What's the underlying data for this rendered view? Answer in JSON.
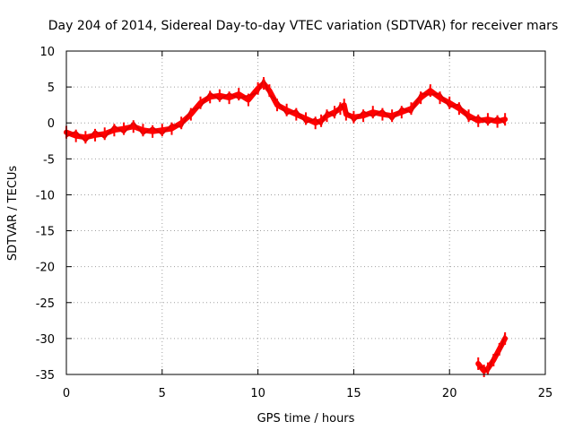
{
  "chart_data": {
    "type": "line",
    "title": "Day 204 of 2014, Sidereal Day-to-day VTEC variation (SDTVAR) for receiver mars",
    "xlabel": "GPS time / hours",
    "ylabel": "SDTVAR / TECUs",
    "xlim": [
      0,
      25
    ],
    "ylim": [
      -35,
      10
    ],
    "xticks": [
      0,
      5,
      10,
      15,
      20,
      25
    ],
    "yticks": [
      10,
      5,
      0,
      -5,
      -10,
      -15,
      -20,
      -25,
      -30,
      -35
    ],
    "grid": true,
    "series": [
      {
        "name": "SDTVAR",
        "color": "#ff0000",
        "segments": [
          [
            [
              0.0,
              -1.3
            ],
            [
              0.5,
              -1.8
            ],
            [
              1.0,
              -2.0
            ],
            [
              1.5,
              -1.7
            ],
            [
              2.0,
              -1.5
            ],
            [
              2.5,
              -1.0
            ],
            [
              3.0,
              -0.8
            ],
            [
              3.5,
              -0.5
            ],
            [
              4.0,
              -1.0
            ],
            [
              4.5,
              -1.2
            ],
            [
              5.0,
              -1.0
            ],
            [
              5.5,
              -0.8
            ],
            [
              6.0,
              0.0
            ],
            [
              6.5,
              1.2
            ],
            [
              7.0,
              2.8
            ],
            [
              7.5,
              3.6
            ],
            [
              8.0,
              3.8
            ],
            [
              8.5,
              3.5
            ],
            [
              9.0,
              4.0
            ],
            [
              9.5,
              3.2
            ],
            [
              10.0,
              4.8
            ],
            [
              10.3,
              5.5
            ],
            [
              10.6,
              4.5
            ],
            [
              11.0,
              2.5
            ],
            [
              11.5,
              1.8
            ],
            [
              12.0,
              1.2
            ],
            [
              12.5,
              0.6
            ],
            [
              13.0,
              0.0
            ],
            [
              13.3,
              0.3
            ],
            [
              13.6,
              1.0
            ],
            [
              14.0,
              1.5
            ],
            [
              14.3,
              2.0
            ],
            [
              14.5,
              2.5
            ],
            [
              14.6,
              1.2
            ],
            [
              15.0,
              0.8
            ],
            [
              15.5,
              1.0
            ],
            [
              16.0,
              1.5
            ],
            [
              16.5,
              1.2
            ],
            [
              17.0,
              1.0
            ],
            [
              17.5,
              1.5
            ],
            [
              18.0,
              2.0
            ],
            [
              18.5,
              3.5
            ],
            [
              19.0,
              4.5
            ],
            [
              19.5,
              3.5
            ],
            [
              20.0,
              2.8
            ],
            [
              20.5,
              2.0
            ],
            [
              21.0,
              1.0
            ],
            [
              21.5,
              0.3
            ],
            [
              22.0,
              0.5
            ],
            [
              22.5,
              0.2
            ],
            [
              22.9,
              0.5
            ]
          ],
          [
            [
              21.5,
              -33.5
            ],
            [
              21.8,
              -34.5
            ],
            [
              22.0,
              -34.2
            ],
            [
              22.3,
              -33.0
            ],
            [
              22.6,
              -31.5
            ],
            [
              22.9,
              -30.0
            ]
          ]
        ]
      }
    ]
  }
}
